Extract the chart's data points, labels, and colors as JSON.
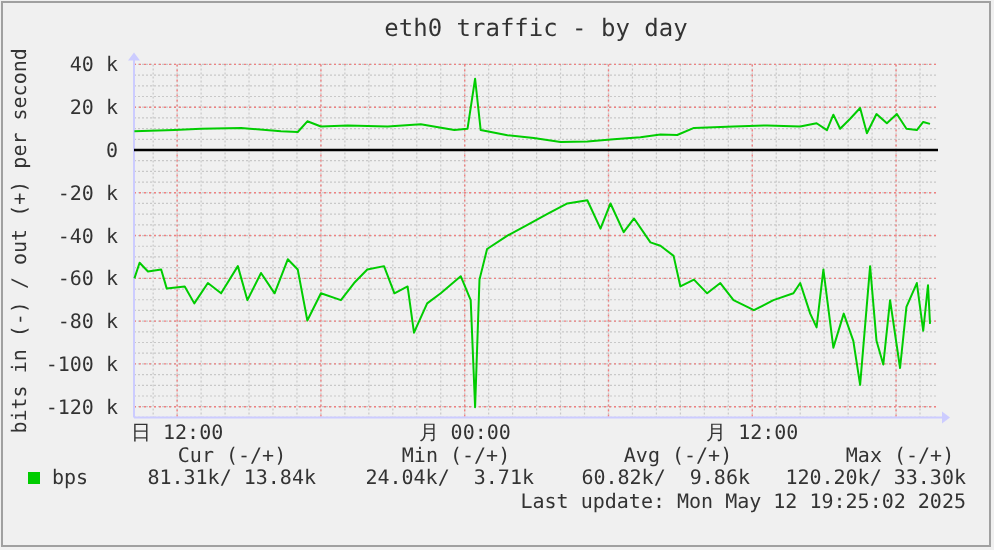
{
  "chart_data": {
    "type": "line",
    "title": "eth0 traffic - by day",
    "ylabel": "bits in (-) / out (+) per second",
    "xlim": [
      "2025-05-11T10:12",
      "2025-05-12T19:45"
    ],
    "ylim": [
      -125000,
      40000
    ],
    "xticks": [
      {
        "value": "2025-05-11T12:00",
        "label": "日 12:00"
      },
      {
        "value": "2025-05-11T18:00",
        "label": null
      },
      {
        "value": "2025-05-12T00:00",
        "label": "月 00:00"
      },
      {
        "value": "2025-05-12T06:00",
        "label": null
      },
      {
        "value": "2025-05-12T12:00",
        "label": "月 12:00"
      },
      {
        "value": "2025-05-12T18:00",
        "label": null
      }
    ],
    "yticks": [
      {
        "value": 40000,
        "label": "40 k"
      },
      {
        "value": 20000,
        "label": "20 k"
      },
      0,
      {
        "value": -20000,
        "label": "-20 k"
      },
      {
        "value": -40000,
        "label": "-40 k"
      },
      {
        "value": -60000,
        "label": "-60 k"
      },
      {
        "value": -80000,
        "label": "-80 k"
      },
      {
        "value": -100000,
        "label": "-100 k"
      },
      {
        "value": -120000,
        "label": "-120 k"
      }
    ],
    "grid": true,
    "legend": "bottom left",
    "marker": "none",
    "line_style": "solid",
    "ref_lines": [
      {
        "axis": "y",
        "value": 0,
        "color": "#000000"
      }
    ],
    "series": [
      {
        "name": "bps",
        "color": "#00cc00",
        "x": [
          "2025-05-11T10:13",
          "2025-05-11T10:26",
          "2025-05-11T10:47",
          "2025-05-11T11:20",
          "2025-05-11T11:34",
          "2025-05-11T12:19",
          "2025-05-11T12:43",
          "2025-05-11T13:17",
          "2025-05-11T13:50",
          "2025-05-11T14:32",
          "2025-05-11T14:56",
          "2025-05-11T15:30",
          "2025-05-11T16:04",
          "2025-05-11T16:37",
          "2025-05-11T17:02",
          "2025-05-11T17:26",
          "2025-05-11T18:00",
          "2025-05-11T18:50",
          "2025-05-11T19:23",
          "2025-05-11T19:56",
          "2025-05-11T20:38",
          "2025-05-11T21:04",
          "2025-05-11T21:37",
          "2025-05-11T21:53",
          "2025-05-11T22:26",
          "2025-05-11T23:00",
          "2025-05-11T23:50",
          "2025-05-12T00:15",
          "2025-05-12T00:26",
          "2025-05-12T00:37",
          "2025-05-12T00:56",
          "2025-05-12T01:47",
          "2025-05-12T02:37",
          "2025-05-12T03:26",
          "2025-05-12T04:17",
          "2025-05-12T05:07",
          "2025-05-12T05:40",
          "2025-05-12T06:05",
          "2025-05-12T06:38",
          "2025-05-12T07:04",
          "2025-05-12T07:45",
          "2025-05-12T08:10",
          "2025-05-12T08:43",
          "2025-05-12T09:00",
          "2025-05-12T09:34",
          "2025-05-12T10:07",
          "2025-05-12T10:40",
          "2025-05-12T11:13",
          "2025-05-12T12:04",
          "2025-05-12T12:53",
          "2025-05-12T13:43",
          "2025-05-12T14:00",
          "2025-05-12T14:25",
          "2025-05-12T14:41",
          "2025-05-12T14:58",
          "2025-05-12T15:23",
          "2025-05-12T15:49",
          "2025-05-12T16:13",
          "2025-05-12T16:30",
          "2025-05-12T16:55",
          "2025-05-12T17:11",
          "2025-05-12T17:28",
          "2025-05-12T17:45",
          "2025-05-12T18:10",
          "2025-05-12T18:26",
          "2025-05-12T18:52",
          "2025-05-12T19:08",
          "2025-05-12T19:20",
          "2025-05-12T19:25"
        ],
        "values": [
          -60000,
          -52700,
          -56800,
          -55900,
          -64800,
          -63800,
          -71700,
          -62200,
          -67000,
          -54300,
          -70200,
          -57500,
          -67000,
          -51100,
          -55900,
          -79700,
          -67000,
          -70200,
          -62200,
          -55900,
          -54300,
          -67000,
          -63800,
          -85400,
          -71700,
          -67000,
          -59000,
          -70200,
          -120200,
          -60600,
          -46300,
          -40000,
          -35000,
          -30000,
          -25000,
          -23500,
          -36800,
          -25000,
          -38400,
          -32000,
          -43200,
          -44800,
          -49500,
          -63800,
          -60600,
          -67000,
          -62200,
          -70200,
          -74900,
          -70200,
          -67000,
          -62200,
          -76500,
          -82900,
          -55900,
          -92400,
          -76500,
          -89200,
          -109800,
          -54300,
          -89200,
          -100300,
          -70200,
          -101900,
          -73300,
          -62200,
          -84500,
          -63200,
          -81300
        ]
      },
      {
        "color": "#00cc00",
        "x": [
          "2025-05-11T10:13",
          "2025-05-11T11:53",
          "2025-05-11T13:00",
          "2025-05-11T14:40",
          "2025-05-11T16:20",
          "2025-05-11T17:02",
          "2025-05-11T17:26",
          "2025-05-11T18:00",
          "2025-05-11T19:07",
          "2025-05-11T20:47",
          "2025-05-11T22:10",
          "2025-05-11T23:34",
          "2025-05-12T00:07",
          "2025-05-12T00:26",
          "2025-05-12T00:40",
          "2025-05-12T01:47",
          "2025-05-12T02:53",
          "2025-05-12T04:00",
          "2025-05-12T05:07",
          "2025-05-12T06:13",
          "2025-05-12T07:20",
          "2025-05-12T08:10",
          "2025-05-12T08:52",
          "2025-05-12T09:34",
          "2025-05-12T11:13",
          "2025-05-12T12:37",
          "2025-05-12T14:00",
          "2025-05-12T14:41",
          "2025-05-12T15:07",
          "2025-05-12T15:23",
          "2025-05-12T15:40",
          "2025-05-12T16:05",
          "2025-05-12T16:30",
          "2025-05-12T16:47",
          "2025-05-12T17:11",
          "2025-05-12T17:37",
          "2025-05-12T18:02",
          "2025-05-12T18:26",
          "2025-05-12T18:52",
          "2025-05-12T19:08",
          "2025-05-12T19:25"
        ],
        "values": [
          8700,
          9300,
          9900,
          10300,
          8700,
          8400,
          13400,
          11000,
          11500,
          11000,
          12000,
          9300,
          9900,
          33300,
          9300,
          6900,
          5600,
          3700,
          4000,
          5000,
          6000,
          7200,
          7000,
          10300,
          11000,
          11500,
          11000,
          12500,
          9300,
          16500,
          9900,
          14600,
          19600,
          7800,
          16800,
          12500,
          16800,
          9900,
          9300,
          13100,
          12200
        ]
      }
    ],
    "annotations": [
      "Cur (-/+)",
      "Min (-/+)",
      "Avg (-/+)",
      "Max (-/+)",
      "81.31k/ 13.84k",
      "24.04k/  3.71k",
      "60.82k/  9.86k",
      "120.20k/ 33.30k",
      "Last update: Mon May 12 19:25:02 2025"
    ]
  }
}
